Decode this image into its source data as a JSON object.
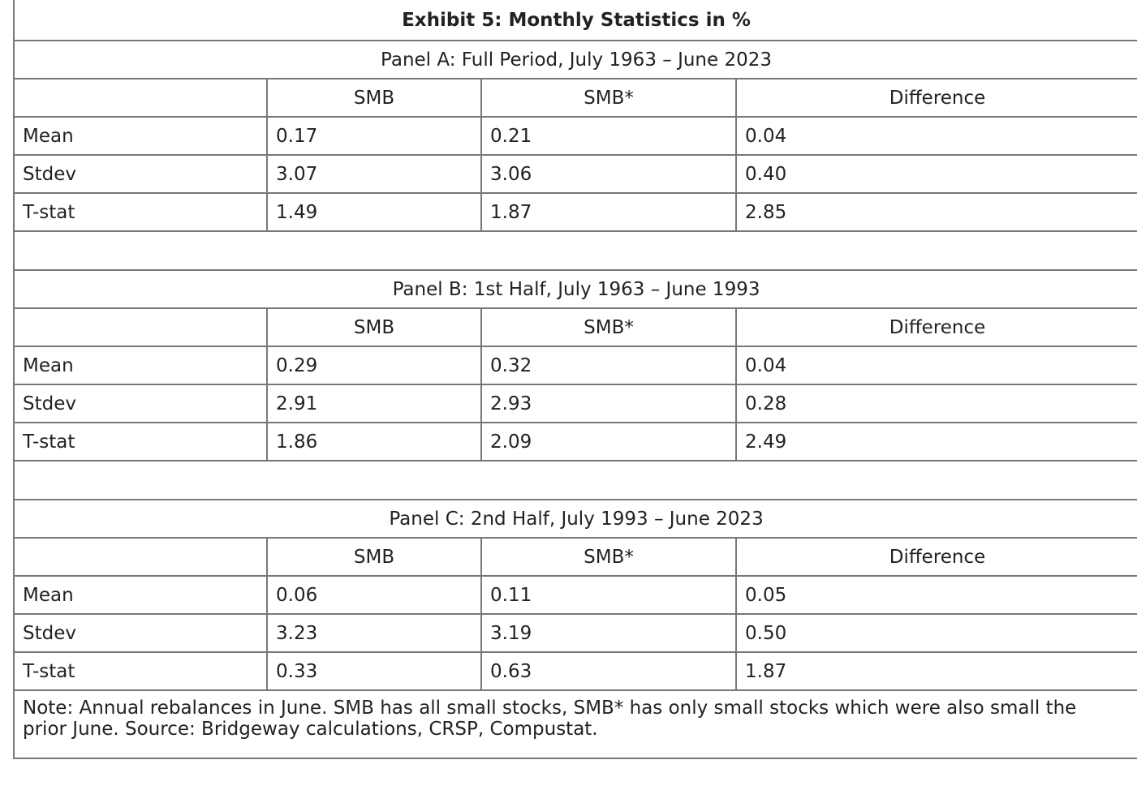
{
  "title": "Exhibit 5: Monthly Statistics in %",
  "panels": [
    {
      "title": "Panel A: Full Period, July 1963 – June 2023",
      "columns": [
        "SMB",
        "SMB*",
        "Difference"
      ],
      "rows": [
        {
          "label": "Mean",
          "values": [
            "0.17",
            "0.21",
            "0.04"
          ]
        },
        {
          "label": "Stdev",
          "values": [
            "3.07",
            "3.06",
            "0.40"
          ]
        },
        {
          "label": "T-stat",
          "values": [
            "1.49",
            "1.87",
            "2.85"
          ]
        }
      ]
    },
    {
      "title": "Panel B: 1st Half, July 1963 – June 1993",
      "columns": [
        "SMB",
        "SMB*",
        "Difference"
      ],
      "rows": [
        {
          "label": "Mean",
          "values": [
            "0.29",
            "0.32",
            "0.04"
          ]
        },
        {
          "label": "Stdev",
          "values": [
            "2.91",
            "2.93",
            "0.28"
          ]
        },
        {
          "label": "T-stat",
          "values": [
            "1.86",
            "2.09",
            "2.49"
          ]
        }
      ]
    },
    {
      "title": "Panel C: 2nd Half, July 1993 – June 2023",
      "columns": [
        "SMB",
        "SMB*",
        "Difference"
      ],
      "rows": [
        {
          "label": "Mean",
          "values": [
            "0.06",
            "0.11",
            "0.05"
          ]
        },
        {
          "label": "Stdev",
          "values": [
            "3.23",
            "3.19",
            "0.50"
          ]
        },
        {
          "label": "T-stat",
          "values": [
            "0.33",
            "0.63",
            "1.87"
          ]
        }
      ]
    }
  ],
  "note": "Note: Annual rebalances in June. SMB has all small stocks, SMB* has only small stocks which were also small the prior June. Source: Bridgeway calculations, CRSP, Compustat."
}
